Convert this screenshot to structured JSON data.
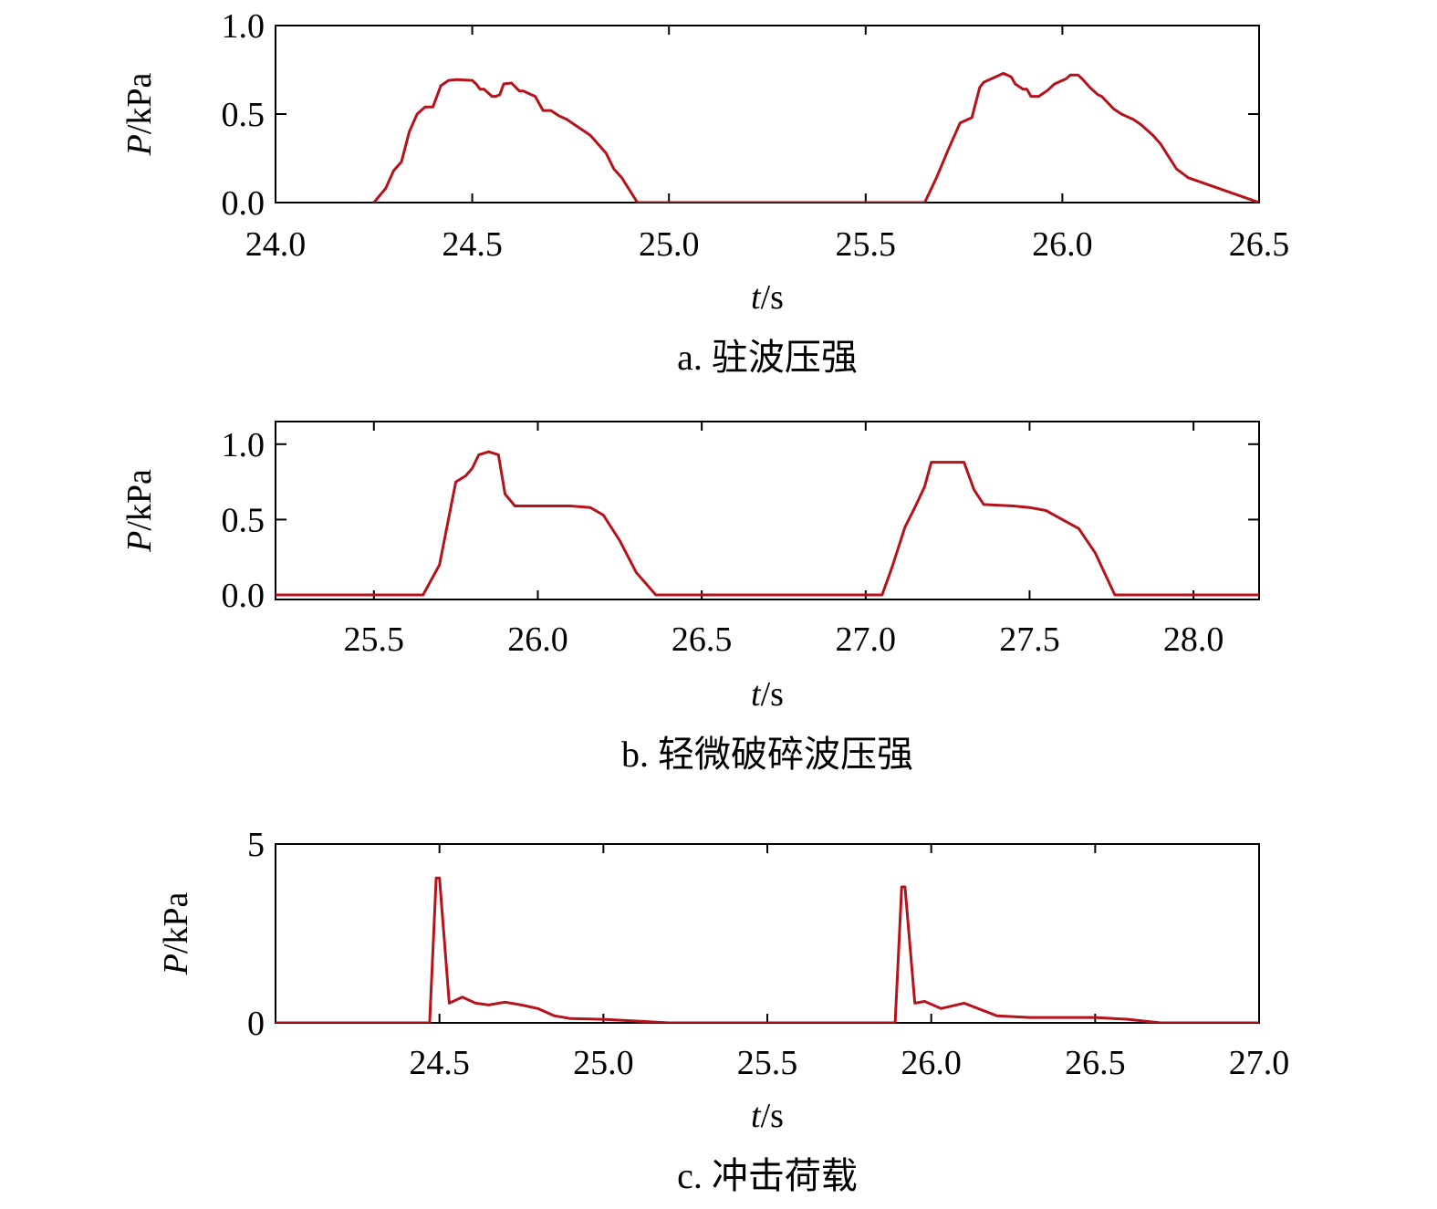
{
  "figure": {
    "series_color": "#b5121b",
    "frame_color": "#000000"
  },
  "chart_data": [
    {
      "id": "a",
      "type": "line",
      "caption": "a. 驻波压强",
      "xlabel_italic": "t",
      "xlabel_unit": "/s",
      "ylabel_italic": "P",
      "ylabel_unit": "/kPa",
      "xlim": [
        24.0,
        26.5
      ],
      "ylim": [
        0.0,
        1.0
      ],
      "xticks": [
        24.0,
        24.5,
        25.0,
        25.5,
        26.0,
        26.5
      ],
      "xtick_labels": [
        "24.0",
        "24.5",
        "25.0",
        "25.5",
        "26.0",
        "26.5"
      ],
      "yticks": [
        0.0,
        0.5,
        1.0
      ],
      "ytick_labels": [
        "0.0",
        "0.5",
        "1.0"
      ],
      "grid": false,
      "x": [
        24.25,
        24.28,
        24.3,
        24.32,
        24.34,
        24.36,
        24.38,
        24.4,
        24.41,
        24.42,
        24.44,
        24.46,
        24.5,
        24.51,
        24.52,
        24.53,
        24.55,
        24.56,
        24.57,
        24.58,
        24.6,
        24.62,
        24.63,
        24.65,
        24.66,
        24.68,
        24.7,
        24.72,
        24.74,
        24.76,
        24.8,
        24.84,
        24.86,
        24.88,
        24.9,
        24.92,
        25.5,
        25.65,
        25.68,
        25.71,
        25.74,
        25.77,
        25.79,
        25.8,
        25.82,
        25.85,
        25.87,
        25.88,
        25.9,
        25.91,
        25.92,
        25.94,
        25.96,
        25.98,
        26.01,
        26.02,
        26.04,
        26.05,
        26.07,
        26.09,
        26.1,
        26.13,
        26.15,
        26.18,
        26.2,
        26.23,
        26.25,
        26.27,
        26.29,
        26.32,
        26.5
      ],
      "y": [
        0.0,
        0.08,
        0.18,
        0.23,
        0.4,
        0.5,
        0.54,
        0.54,
        0.6,
        0.66,
        0.69,
        0.695,
        0.69,
        0.67,
        0.64,
        0.64,
        0.6,
        0.6,
        0.61,
        0.67,
        0.675,
        0.63,
        0.63,
        0.61,
        0.6,
        0.52,
        0.52,
        0.49,
        0.47,
        0.44,
        0.38,
        0.28,
        0.19,
        0.14,
        0.07,
        0.0,
        0.0,
        0.0,
        0.14,
        0.3,
        0.45,
        0.48,
        0.65,
        0.68,
        0.7,
        0.73,
        0.71,
        0.67,
        0.64,
        0.64,
        0.6,
        0.6,
        0.63,
        0.67,
        0.7,
        0.72,
        0.72,
        0.7,
        0.65,
        0.61,
        0.6,
        0.53,
        0.5,
        0.47,
        0.44,
        0.38,
        0.33,
        0.26,
        0.19,
        0.14,
        0.0
      ]
    },
    {
      "id": "b",
      "type": "line",
      "caption": "b. 轻微破碎波压强",
      "xlabel_italic": "t",
      "xlabel_unit": "/s",
      "ylabel_italic": "P",
      "ylabel_unit": "/kPa",
      "xlim": [
        25.2,
        28.2
      ],
      "ylim": [
        -0.03,
        1.15
      ],
      "xticks": [
        25.5,
        26.0,
        26.5,
        27.0,
        27.5,
        28.0
      ],
      "xtick_labels": [
        "25.5",
        "26.0",
        "26.5",
        "27.0",
        "27.5",
        "28.0"
      ],
      "yticks": [
        0.0,
        0.5,
        1.0
      ],
      "ytick_labels": [
        "0.0",
        "0.5",
        "1.0"
      ],
      "grid": false,
      "x": [
        25.2,
        25.65,
        25.7,
        25.75,
        25.78,
        25.8,
        25.82,
        25.85,
        25.88,
        25.9,
        25.93,
        25.96,
        26.0,
        26.1,
        26.16,
        26.2,
        26.25,
        26.3,
        26.36,
        27.05,
        27.08,
        27.12,
        27.15,
        27.18,
        27.2,
        27.23,
        27.25,
        27.3,
        27.33,
        27.36,
        27.45,
        27.5,
        27.55,
        27.6,
        27.65,
        27.7,
        27.76,
        28.2
      ],
      "y": [
        0.0,
        0.0,
        0.2,
        0.75,
        0.79,
        0.84,
        0.93,
        0.95,
        0.93,
        0.67,
        0.59,
        0.59,
        0.59,
        0.59,
        0.58,
        0.53,
        0.36,
        0.15,
        0.0,
        0.0,
        0.18,
        0.45,
        0.58,
        0.72,
        0.88,
        0.88,
        0.88,
        0.88,
        0.7,
        0.6,
        0.59,
        0.58,
        0.56,
        0.5,
        0.44,
        0.28,
        0.0,
        0.0
      ]
    },
    {
      "id": "c",
      "type": "line",
      "caption": "c. 冲击荷载",
      "xlabel_italic": "t",
      "xlabel_unit": "/s",
      "ylabel_italic": "P",
      "ylabel_unit": "/kPa",
      "xlim": [
        24.0,
        27.0
      ],
      "ylim": [
        0,
        5
      ],
      "xticks": [
        24.5,
        25.0,
        25.5,
        26.0,
        26.5,
        27.0
      ],
      "xtick_labels": [
        "24.5",
        "25.0",
        "25.5",
        "26.0",
        "26.5",
        "27.0"
      ],
      "yticks": [
        0,
        5
      ],
      "ytick_labels": [
        "0",
        "5"
      ],
      "grid": false,
      "x": [
        24.0,
        24.47,
        24.49,
        24.5,
        24.53,
        24.57,
        24.61,
        24.65,
        24.7,
        24.75,
        24.8,
        24.85,
        24.9,
        25.0,
        25.1,
        25.2,
        25.8,
        25.89,
        25.91,
        25.92,
        25.95,
        25.98,
        26.03,
        26.1,
        26.2,
        26.3,
        26.4,
        26.5,
        26.6,
        26.7,
        27.0
      ],
      "y": [
        0.0,
        0.0,
        4.05,
        4.05,
        0.55,
        0.72,
        0.55,
        0.5,
        0.58,
        0.5,
        0.4,
        0.2,
        0.12,
        0.1,
        0.05,
        0.0,
        0.0,
        0.0,
        3.8,
        3.8,
        0.55,
        0.6,
        0.4,
        0.55,
        0.2,
        0.15,
        0.15,
        0.15,
        0.1,
        0.0,
        0.0
      ]
    }
  ]
}
